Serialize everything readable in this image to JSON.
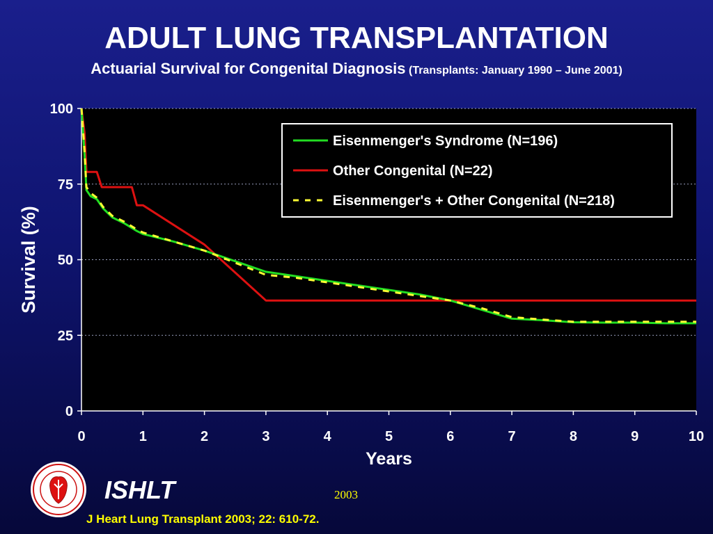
{
  "title": "ADULT LUNG TRANSPLANTATION",
  "subtitle_main": "Actuarial Survival for Congenital Diagnosis",
  "subtitle_paren": "(Transplants: January 1990 – June 2001)",
  "footer": {
    "org": "ISHLT",
    "year": "2003",
    "citation": "J Heart Lung Transplant 2003; 22: 610-72.",
    "logo_text": "INTERNATIONAL SOCIETY FOR HEART & LUNG TRANSPLANTATION"
  },
  "colors": {
    "background_top": "#1a1f8c",
    "background_bottom": "#06083a",
    "plot_background": "#000000",
    "series_1": "#22dd22",
    "series_2": "#dd1111",
    "series_3": "#ffff33",
    "footer_text": "#ffff00"
  },
  "chart_data": {
    "type": "line",
    "xlabel": "Years",
    "ylabel": "Survival (%)",
    "xlim": [
      0,
      10
    ],
    "ylim": [
      0,
      100
    ],
    "xticks": [
      "0",
      "1",
      "2",
      "3",
      "4",
      "5",
      "6",
      "7",
      "8",
      "9",
      "10"
    ],
    "yticks": [
      "0",
      "25",
      "50",
      "75",
      "100"
    ],
    "grid": "horizontal dotted",
    "legend_position": "top-right",
    "series": [
      {
        "name": "Eisenmenger's Syndrome  (N=196)",
        "color": "#22dd22",
        "style": "solid",
        "points": [
          [
            0,
            100
          ],
          [
            0.05,
            85
          ],
          [
            0.08,
            73
          ],
          [
            0.15,
            71
          ],
          [
            0.25,
            70
          ],
          [
            0.35,
            67
          ],
          [
            0.5,
            64
          ],
          [
            0.7,
            62
          ],
          [
            0.9,
            59.5
          ],
          [
            1,
            58.5
          ],
          [
            1.5,
            56
          ],
          [
            2,
            53
          ],
          [
            2.5,
            49.5
          ],
          [
            3,
            46
          ],
          [
            3.5,
            44.5
          ],
          [
            4,
            43
          ],
          [
            4.5,
            41.5
          ],
          [
            5,
            40
          ],
          [
            5.5,
            38.5
          ],
          [
            6,
            36.5
          ],
          [
            6.5,
            33.5
          ],
          [
            7,
            30.5
          ],
          [
            7.5,
            30
          ],
          [
            8,
            29.3
          ],
          [
            8.5,
            29.2
          ],
          [
            9,
            29.2
          ],
          [
            9.5,
            29
          ],
          [
            10,
            29
          ]
        ]
      },
      {
        "name": "Other Congenital  (N=22)",
        "color": "#dd1111",
        "style": "solid",
        "points": [
          [
            0,
            100
          ],
          [
            0.05,
            92
          ],
          [
            0.08,
            79
          ],
          [
            0.25,
            79
          ],
          [
            0.33,
            74
          ],
          [
            0.82,
            74
          ],
          [
            0.9,
            68
          ],
          [
            1,
            68
          ],
          [
            2,
            55
          ],
          [
            3,
            36.5
          ],
          [
            4,
            36.5
          ],
          [
            5,
            36.5
          ],
          [
            6,
            36.5
          ],
          [
            7,
            36.5
          ],
          [
            8,
            36.5
          ],
          [
            9,
            36.5
          ],
          [
            10,
            36.5
          ]
        ]
      },
      {
        "name": "Eisenmenger's + Other Congenital (N=218)",
        "color": "#ffff33",
        "style": "dashed",
        "points": [
          [
            0,
            100
          ],
          [
            0.05,
            86
          ],
          [
            0.08,
            74
          ],
          [
            0.15,
            72
          ],
          [
            0.25,
            70.5
          ],
          [
            0.35,
            67.5
          ],
          [
            0.5,
            64.5
          ],
          [
            0.7,
            62.5
          ],
          [
            0.9,
            60
          ],
          [
            1,
            59
          ],
          [
            1.5,
            56
          ],
          [
            2,
            53
          ],
          [
            2.5,
            49
          ],
          [
            3,
            45
          ],
          [
            3.5,
            44
          ],
          [
            4,
            42.5
          ],
          [
            4.5,
            41
          ],
          [
            5,
            39.5
          ],
          [
            5.5,
            38
          ],
          [
            6,
            36.5
          ],
          [
            6.5,
            34
          ],
          [
            7,
            31
          ],
          [
            7.5,
            30.2
          ],
          [
            8,
            29.5
          ],
          [
            8.5,
            29.5
          ],
          [
            9,
            29.5
          ],
          [
            9.5,
            29.5
          ],
          [
            10,
            29.5
          ]
        ]
      }
    ]
  }
}
